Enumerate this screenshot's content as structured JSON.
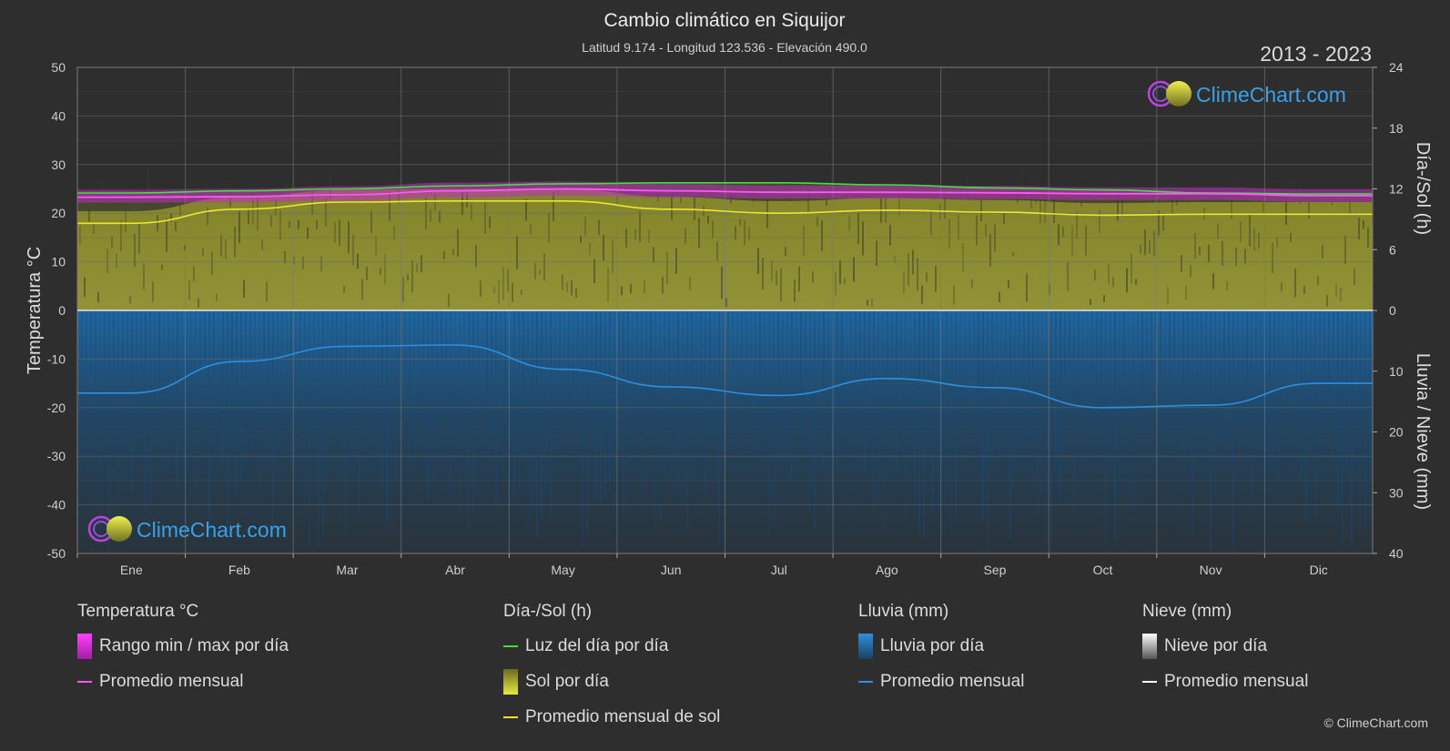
{
  "header": {
    "title": "Cambio climático en Siquijor",
    "subtitle": "Latitud 9.174 - Longitud 123.536 - Elevación 490.0",
    "year_range": "2013 - 2023"
  },
  "brand": {
    "name": "ClimeChart.com",
    "copyright": "© ClimeChart.com"
  },
  "chart_data": {
    "type": "area",
    "title": "Cambio climático en Siquijor",
    "categories": [
      "Ene",
      "Feb",
      "Mar",
      "Abr",
      "May",
      "Jun",
      "Jul",
      "Ago",
      "Sep",
      "Oct",
      "Nov",
      "Dic"
    ],
    "left_axis": {
      "label": "Temperatura °C",
      "range": [
        -50,
        50
      ],
      "ticks": [
        "50",
        "40",
        "30",
        "20",
        "10",
        "0",
        "-10",
        "-20",
        "-30",
        "-40",
        "-50"
      ]
    },
    "right_axis_top": {
      "label": "Día-/Sol (h)",
      "range": [
        0,
        24
      ],
      "ticks": [
        "24",
        "18",
        "12",
        "6",
        "0"
      ]
    },
    "right_axis_bottom": {
      "label": "Lluvia / Nieve (mm)",
      "range": [
        0,
        40
      ],
      "ticks": [
        "0",
        "10",
        "20",
        "30",
        "40"
      ]
    },
    "grid": true,
    "series": [
      {
        "name": "Luz del día por día",
        "axis": "sun_h",
        "color": "#44dd44",
        "values": [
          11.6,
          11.8,
          12.0,
          12.3,
          12.5,
          12.6,
          12.6,
          12.4,
          12.1,
          11.9,
          11.6,
          11.5
        ]
      },
      {
        "name": "Promedio mensual de sol",
        "axis": "sun_h",
        "color": "#e8e830",
        "values": [
          8.6,
          10.0,
          10.7,
          10.8,
          10.8,
          10.0,
          9.6,
          9.9,
          9.7,
          9.4,
          9.5,
          9.5
        ]
      },
      {
        "name": "Promedio mensual",
        "axis": "temp_c",
        "color": "#ff55ff",
        "values": [
          23.3,
          23.4,
          23.8,
          24.6,
          25.0,
          24.6,
          24.3,
          24.3,
          24.2,
          24.0,
          24.0,
          23.6
        ]
      },
      {
        "name": "Promedio mensual",
        "axis": "rain_mm",
        "color": "#2e8fe0",
        "values": [
          13.6,
          8.4,
          5.9,
          5.7,
          9.7,
          12.6,
          14.0,
          11.2,
          12.7,
          16.0,
          15.6,
          12.0
        ]
      },
      {
        "name": "Promedio mensual",
        "axis": "snow_mm",
        "color": "#ffffff",
        "values": [
          0,
          0,
          0,
          0,
          0,
          0,
          0,
          0,
          0,
          0,
          0,
          0
        ]
      }
    ],
    "temp_range_band": {
      "min": [
        22.2,
        22.2,
        22.5,
        23.2,
        23.6,
        23.3,
        23.0,
        23.0,
        22.9,
        22.7,
        22.7,
        22.3
      ],
      "max": [
        24.8,
        25.0,
        25.5,
        26.3,
        26.5,
        26.0,
        25.7,
        25.7,
        25.6,
        25.3,
        25.3,
        24.9
      ]
    }
  },
  "legend": {
    "temperature": {
      "title": "Temperatura °C",
      "items": [
        {
          "label": "Rango min / max por día",
          "color": "#e040e0"
        },
        {
          "label": "Promedio mensual",
          "color": "#ff55ff"
        }
      ]
    },
    "sun": {
      "title": "Día-/Sol (h)",
      "items": [
        {
          "label": "Luz del día por día",
          "color": "#44dd44"
        },
        {
          "label": "Sol por día",
          "color": "#c8c832"
        },
        {
          "label": "Promedio mensual de sol",
          "color": "#e8e830"
        }
      ]
    },
    "rain": {
      "title": "Lluvia (mm)",
      "items": [
        {
          "label": "Lluvia por día",
          "color": "#2e8fe0"
        },
        {
          "label": "Promedio mensual",
          "color": "#2e8fe0"
        }
      ]
    },
    "snow": {
      "title": "Nieve (mm)",
      "items": [
        {
          "label": "Nieve por día",
          "color": "#dddddd"
        },
        {
          "label": "Promedio mensual",
          "color": "#ffffff"
        }
      ]
    }
  }
}
